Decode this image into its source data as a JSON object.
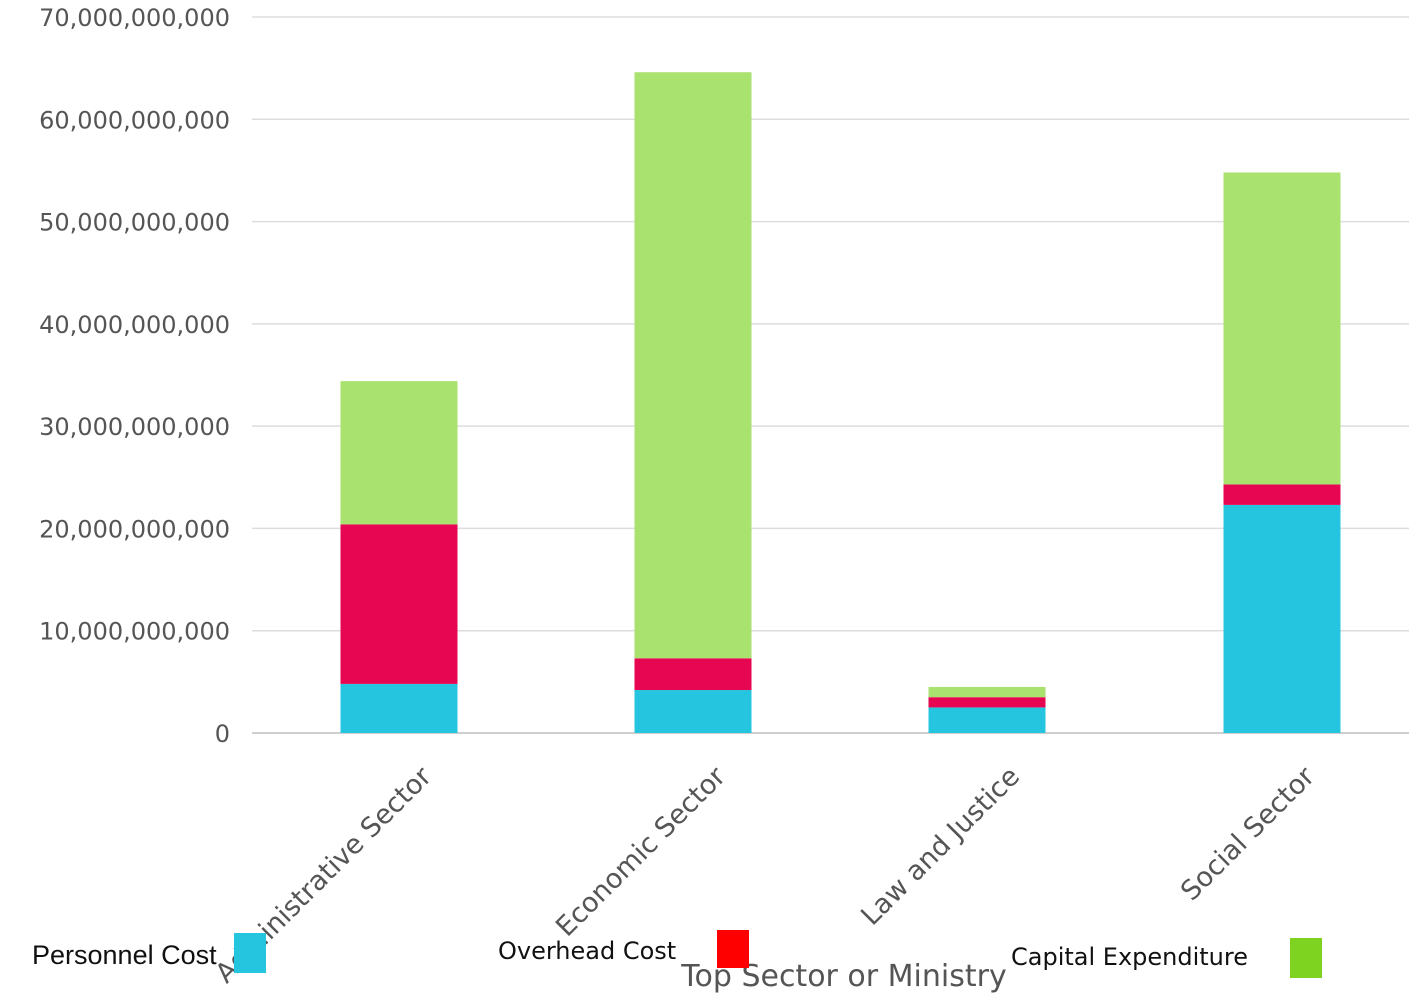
{
  "chart_data": {
    "type": "bar",
    "stacked": true,
    "title": "",
    "xlabel": "Top Sector or Ministry",
    "ylabel": "",
    "categories": [
      "Administrative Sector",
      "Economic Sector",
      "Law and Justice",
      "Social Sector"
    ],
    "series": [
      {
        "name": "Personnel Cost",
        "color": "#25c5e0",
        "values": [
          4800000000,
          4200000000,
          2500000000,
          22300000000
        ]
      },
      {
        "name": "Overhead Cost",
        "color": "#e60652",
        "values": [
          15600000000,
          3100000000,
          1000000000,
          2000000000
        ]
      },
      {
        "name": "Capital  Expenditure",
        "color": "#a9e26f",
        "values": [
          14000000000,
          57300000000,
          1000000000,
          30500000000
        ]
      }
    ],
    "ylim": [
      0,
      70000000000
    ],
    "yticks": [
      0,
      10000000000,
      20000000000,
      30000000000,
      40000000000,
      50000000000,
      60000000000,
      70000000000
    ],
    "ytick_labels": [
      "0",
      "10,000,000,000",
      "20,000,000,000",
      "30,000,000,000",
      "40,000,000,000",
      "50,000,000,000",
      "60,000,000,000",
      "70,000,000,000"
    ],
    "grid": true,
    "legend_position": "bottom"
  },
  "legend": [
    {
      "label": "Personnel Cost",
      "swatch_color": "#25c5e0"
    },
    {
      "label": "Overhead Cost",
      "swatch_color": "#ff0000"
    },
    {
      "label": "Capital  Expenditure",
      "swatch_color": "#7ed321"
    }
  ]
}
